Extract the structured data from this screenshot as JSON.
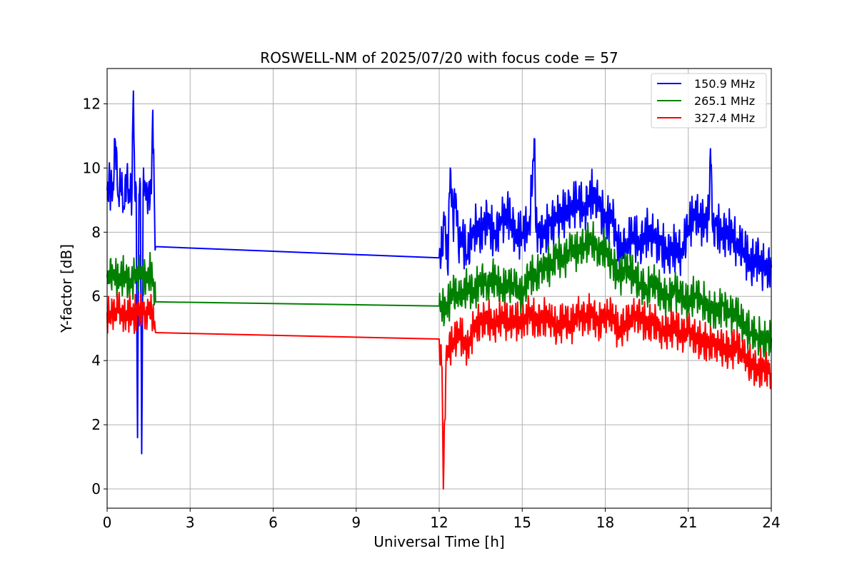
{
  "chart_data": {
    "type": "line",
    "title": "ROSWELL-NM of 2025/07/20 with focus code = 57",
    "xlabel": "Universal Time [h]",
    "ylabel": "Y-factor [dB]",
    "xlim": [
      0,
      24
    ],
    "ylim": [
      -0.6,
      13.1
    ],
    "xticks": [
      0,
      3,
      6,
      9,
      12,
      15,
      18,
      21,
      24
    ],
    "yticks": [
      0,
      2,
      4,
      6,
      8,
      10,
      12
    ],
    "grid": true,
    "legend_position": "top-right",
    "gap": [
      1.75,
      12.0
    ],
    "series": [
      {
        "name": "150.9 MHz",
        "color": "#0000ff",
        "x": [
          0,
          0.1,
          0.2,
          0.3,
          0.4,
          0.5,
          0.6,
          0.7,
          0.8,
          0.9,
          0.95,
          1.0,
          1.05,
          1.1,
          1.15,
          1.2,
          1.25,
          1.3,
          1.35,
          1.4,
          1.5,
          1.6,
          1.65,
          1.7,
          1.75,
          12.0,
          12.1,
          12.2,
          12.3,
          12.4,
          12.5,
          12.6,
          12.7,
          12.8,
          13.0,
          13.25,
          13.5,
          13.75,
          14.0,
          14.25,
          14.5,
          14.75,
          15.0,
          15.25,
          15.45,
          15.5,
          15.75,
          16.0,
          16.25,
          16.5,
          16.75,
          17.0,
          17.25,
          17.5,
          17.75,
          18.0,
          18.25,
          18.5,
          18.75,
          19.0,
          19.25,
          19.5,
          19.75,
          20.0,
          20.25,
          20.5,
          20.75,
          21.0,
          21.25,
          21.5,
          21.75,
          21.8,
          21.9,
          22.0,
          22.25,
          22.5,
          22.75,
          23.0,
          23.25,
          23.5,
          23.75,
          24.0
        ],
        "y": [
          9.3,
          9.5,
          9.2,
          10.8,
          9.1,
          9.4,
          8.8,
          9.6,
          9.2,
          9.3,
          12.4,
          9.1,
          9.4,
          1.6,
          9.2,
          9.5,
          1.1,
          9.3,
          9.6,
          9.0,
          9.4,
          9.2,
          11.8,
          9.3,
          7.55,
          7.2,
          7.6,
          8.5,
          6.9,
          10.0,
          8.3,
          9.2,
          7.4,
          8.0,
          7.3,
          8.2,
          8.0,
          8.4,
          7.8,
          8.3,
          8.6,
          7.9,
          8.0,
          8.2,
          10.9,
          8.0,
          7.9,
          8.2,
          8.4,
          8.6,
          8.8,
          9.0,
          8.7,
          9.2,
          8.9,
          8.3,
          8.5,
          7.4,
          7.6,
          8.0,
          7.6,
          8.0,
          7.8,
          7.6,
          7.3,
          7.5,
          7.4,
          8.2,
          8.6,
          8.3,
          8.4,
          10.6,
          8.0,
          8.2,
          7.9,
          8.0,
          7.7,
          7.5,
          7.0,
          7.2,
          6.8,
          6.9
        ]
      },
      {
        "name": "265.1 MHz",
        "color": "#008000",
        "x": [
          0,
          0.2,
          0.4,
          0.6,
          0.8,
          1.0,
          1.2,
          1.4,
          1.6,
          1.75,
          12.0,
          12.25,
          12.5,
          12.75,
          13.0,
          13.25,
          13.5,
          13.75,
          14.0,
          14.25,
          14.5,
          14.75,
          15.0,
          15.25,
          15.5,
          15.75,
          16.0,
          16.25,
          16.5,
          16.75,
          17.0,
          17.25,
          17.5,
          17.75,
          18.0,
          18.25,
          18.5,
          18.75,
          19.0,
          19.25,
          19.5,
          19.75,
          20.0,
          20.25,
          20.5,
          20.75,
          21.0,
          21.25,
          21.5,
          21.75,
          22.0,
          22.25,
          22.5,
          22.75,
          23.0,
          23.25,
          23.5,
          23.75,
          24.0
        ],
        "y": [
          6.6,
          6.8,
          6.5,
          6.7,
          6.4,
          6.6,
          6.7,
          6.5,
          6.8,
          5.83,
          5.7,
          5.6,
          6.2,
          5.9,
          6.3,
          6.1,
          6.5,
          6.4,
          6.6,
          6.2,
          6.4,
          6.3,
          6.0,
          6.7,
          6.6,
          7.0,
          6.9,
          7.3,
          7.1,
          7.5,
          7.4,
          7.6,
          7.8,
          7.4,
          7.5,
          7.0,
          6.6,
          6.9,
          6.7,
          6.4,
          6.2,
          6.5,
          6.1,
          5.9,
          6.2,
          6.0,
          5.8,
          6.1,
          5.9,
          5.6,
          5.5,
          5.7,
          5.4,
          5.5,
          5.1,
          4.9,
          4.8,
          4.6,
          4.7
        ]
      },
      {
        "name": "327.4 MHz",
        "color": "#ff0000",
        "x": [
          0,
          0.2,
          0.4,
          0.6,
          0.8,
          1.0,
          1.2,
          1.4,
          1.6,
          1.75,
          12.0,
          12.1,
          12.15,
          12.25,
          12.5,
          12.75,
          13.0,
          13.25,
          13.5,
          13.75,
          14.0,
          14.25,
          14.5,
          14.75,
          15.0,
          15.25,
          15.5,
          15.75,
          16.0,
          16.25,
          16.5,
          16.75,
          17.0,
          17.25,
          17.5,
          17.75,
          18.0,
          18.25,
          18.5,
          18.75,
          19.0,
          19.25,
          19.5,
          19.75,
          20.0,
          20.25,
          20.5,
          20.75,
          21.0,
          21.25,
          21.5,
          21.75,
          22.0,
          22.25,
          22.5,
          22.75,
          23.0,
          23.25,
          23.5,
          23.75,
          24.0
        ],
        "y": [
          5.5,
          5.4,
          5.6,
          5.3,
          5.5,
          5.4,
          5.6,
          5.5,
          5.7,
          4.87,
          4.67,
          3.8,
          0.0,
          4.2,
          4.6,
          4.9,
          4.3,
          5.0,
          5.2,
          5.3,
          5.1,
          5.4,
          5.2,
          5.3,
          5.1,
          5.5,
          5.2,
          5.3,
          5.4,
          5.0,
          5.3,
          5.1,
          5.4,
          5.3,
          5.5,
          5.1,
          5.5,
          5.4,
          4.9,
          5.2,
          5.3,
          5.4,
          5.1,
          5.2,
          5.0,
          4.9,
          5.1,
          4.8,
          4.9,
          4.7,
          4.6,
          4.5,
          4.6,
          4.4,
          4.3,
          4.5,
          4.1,
          3.9,
          3.7,
          3.8,
          3.6
        ]
      }
    ]
  }
}
